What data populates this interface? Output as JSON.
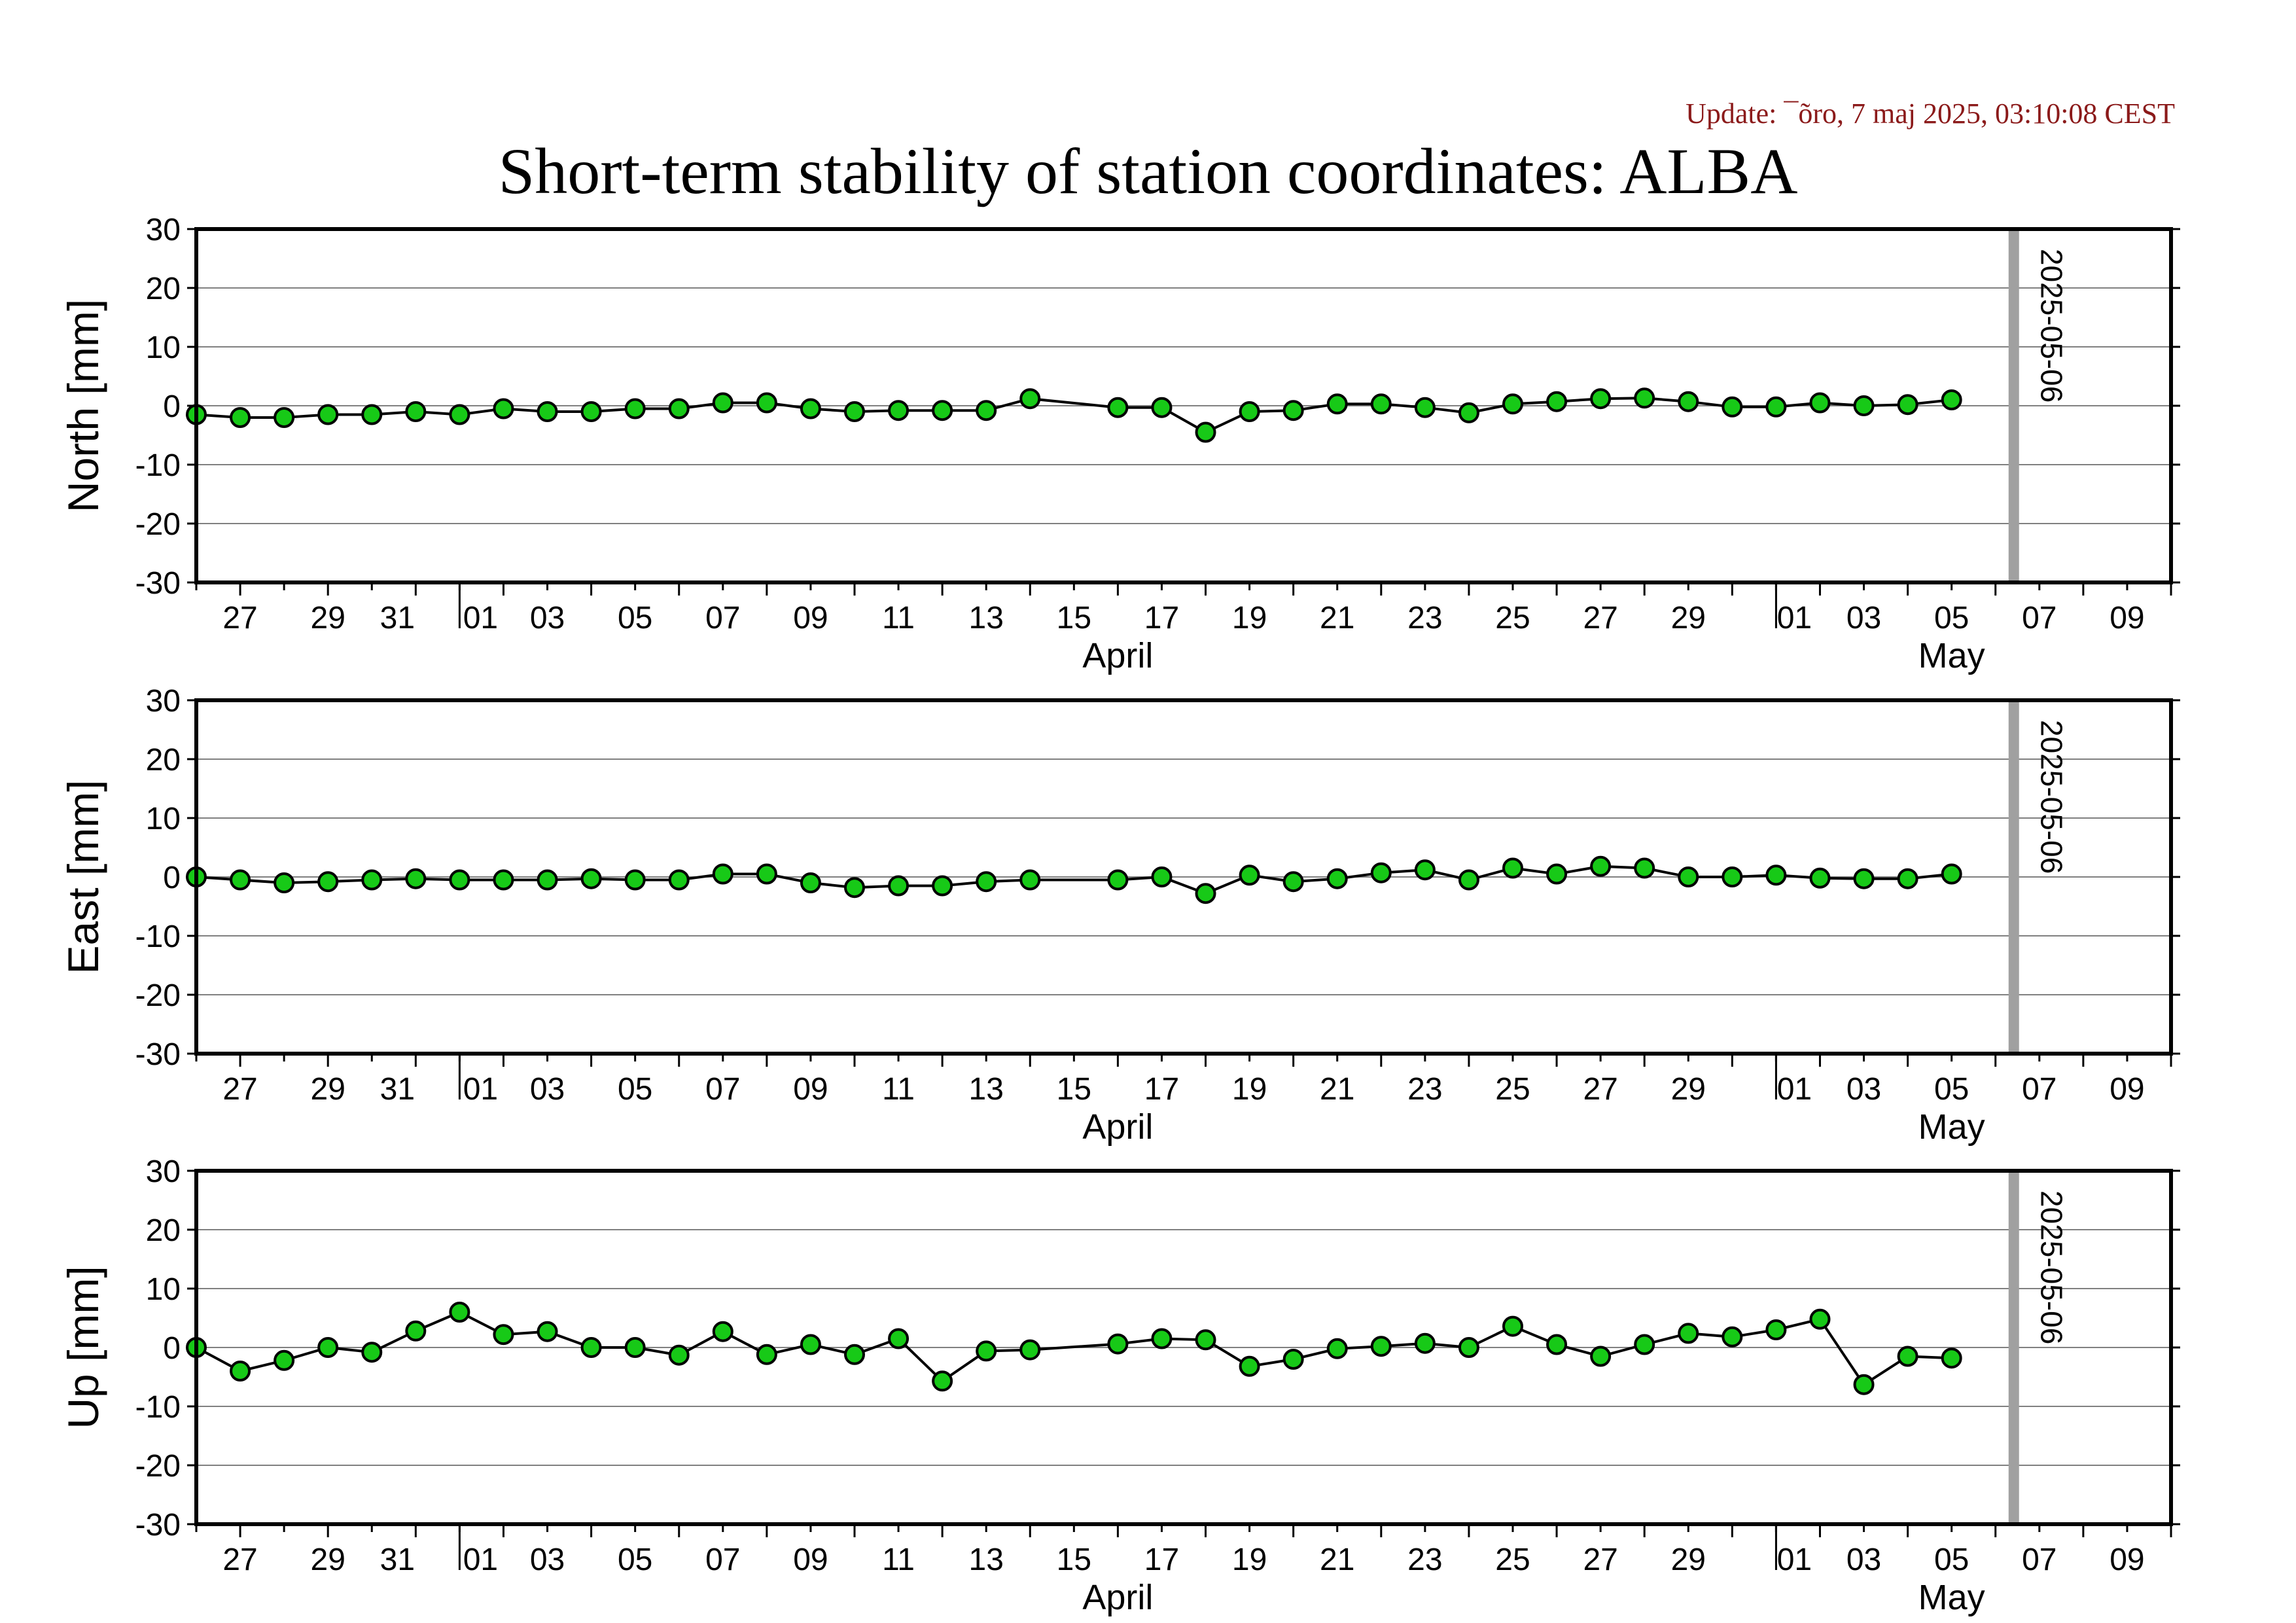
{
  "header": {
    "update": "Update: ¯õro, 7 maj 2025, 03:10:08 CEST",
    "title": "Short-term stability of station coordinates: ALBA"
  },
  "colors": {
    "marker_fill": "#17c917",
    "marker_stroke": "#000000",
    "line": "#000000",
    "grid": "#808080",
    "vline": "#a0a0a0",
    "update_text": "#8b1a1a"
  },
  "chart_data": [
    {
      "type": "line",
      "ylabel": "North [mm]",
      "ylim": [
        -30,
        30
      ],
      "yticks": [
        30,
        20,
        10,
        0,
        -10,
        -20,
        -30
      ],
      "grid": true,
      "x": [
        "2025-03-26",
        "2025-03-27",
        "2025-03-28",
        "2025-03-29",
        "2025-03-30",
        "2025-03-31",
        "2025-04-01",
        "2025-04-02",
        "2025-04-03",
        "2025-04-04",
        "2025-04-05",
        "2025-04-06",
        "2025-04-07",
        "2025-04-08",
        "2025-04-09",
        "2025-04-10",
        "2025-04-11",
        "2025-04-12",
        "2025-04-13",
        "2025-04-14",
        "2025-04-16",
        "2025-04-17",
        "2025-04-18",
        "2025-04-19",
        "2025-04-20",
        "2025-04-21",
        "2025-04-22",
        "2025-04-23",
        "2025-04-24",
        "2025-04-25",
        "2025-04-26",
        "2025-04-27",
        "2025-04-28",
        "2025-04-29",
        "2025-04-30",
        "2025-05-01",
        "2025-05-02",
        "2025-05-03",
        "2025-05-04",
        "2025-05-05"
      ],
      "values": [
        -1.5,
        -2,
        -2,
        -1.5,
        -1.5,
        -1,
        -1.5,
        -0.5,
        -1,
        -1,
        -0.5,
        -0.5,
        0.5,
        0.5,
        -0.5,
        -1,
        -0.8,
        -0.8,
        -0.8,
        1.2,
        -0.3,
        -0.3,
        -4.5,
        -1,
        -0.8,
        0.3,
        0.3,
        -0.3,
        -1.2,
        0.3,
        0.7,
        1.2,
        1.3,
        0.7,
        -0.2,
        -0.2,
        0.5,
        0,
        0.2,
        1
      ]
    },
    {
      "type": "line",
      "ylabel": "East [mm]",
      "ylim": [
        -30,
        30
      ],
      "yticks": [
        30,
        20,
        10,
        0,
        -10,
        -20,
        -30
      ],
      "grid": true,
      "x": [
        "2025-03-26",
        "2025-03-27",
        "2025-03-28",
        "2025-03-29",
        "2025-03-30",
        "2025-03-31",
        "2025-04-01",
        "2025-04-02",
        "2025-04-03",
        "2025-04-04",
        "2025-04-05",
        "2025-04-06",
        "2025-04-07",
        "2025-04-08",
        "2025-04-09",
        "2025-04-10",
        "2025-04-11",
        "2025-04-12",
        "2025-04-13",
        "2025-04-14",
        "2025-04-16",
        "2025-04-17",
        "2025-04-18",
        "2025-04-19",
        "2025-04-20",
        "2025-04-21",
        "2025-04-22",
        "2025-04-23",
        "2025-04-24",
        "2025-04-25",
        "2025-04-26",
        "2025-04-27",
        "2025-04-28",
        "2025-04-29",
        "2025-04-30",
        "2025-05-01",
        "2025-05-02",
        "2025-05-03",
        "2025-05-04",
        "2025-05-05"
      ],
      "values": [
        0,
        -0.5,
        -1,
        -0.8,
        -0.5,
        -0.3,
        -0.5,
        -0.5,
        -0.5,
        -0.3,
        -0.5,
        -0.5,
        0.5,
        0.5,
        -1,
        -1.8,
        -1.5,
        -1.5,
        -0.8,
        -0.5,
        -0.5,
        0,
        -2.8,
        0.3,
        -0.8,
        -0.3,
        0.7,
        1.2,
        -0.5,
        1.5,
        0.5,
        1.8,
        1.5,
        0,
        0,
        0.3,
        -0.2,
        -0.3,
        -0.3,
        0.5
      ]
    },
    {
      "type": "line",
      "ylabel": "Up [mm]",
      "ylim": [
        -30,
        30
      ],
      "yticks": [
        30,
        20,
        10,
        0,
        -10,
        -20,
        -30
      ],
      "grid": true,
      "x": [
        "2025-03-26",
        "2025-03-27",
        "2025-03-28",
        "2025-03-29",
        "2025-03-30",
        "2025-03-31",
        "2025-04-01",
        "2025-04-02",
        "2025-04-03",
        "2025-04-04",
        "2025-04-05",
        "2025-04-06",
        "2025-04-07",
        "2025-04-08",
        "2025-04-09",
        "2025-04-10",
        "2025-04-11",
        "2025-04-12",
        "2025-04-13",
        "2025-04-14",
        "2025-04-16",
        "2025-04-17",
        "2025-04-18",
        "2025-04-19",
        "2025-04-20",
        "2025-04-21",
        "2025-04-22",
        "2025-04-23",
        "2025-04-24",
        "2025-04-25",
        "2025-04-26",
        "2025-04-27",
        "2025-04-28",
        "2025-04-29",
        "2025-04-30",
        "2025-05-01",
        "2025-05-02",
        "2025-05-03",
        "2025-05-04",
        "2025-05-05"
      ],
      "values": [
        0,
        -4,
        -2.2,
        0,
        -0.8,
        2.8,
        6,
        2.2,
        2.7,
        0,
        0,
        -1.3,
        2.7,
        -1.2,
        0.5,
        -1.2,
        1.5,
        -5.7,
        -0.6,
        -0.4,
        0.6,
        1.5,
        1.3,
        -3.2,
        -2,
        -0.2,
        0.2,
        0.7,
        0,
        3.6,
        0.5,
        -1.5,
        0.5,
        2.4,
        1.8,
        3,
        4.8,
        -6.3,
        -1.5,
        -1.8
      ]
    }
  ],
  "xaxis": {
    "range": [
      "2025-03-26",
      "2025-05-10"
    ],
    "tick_labels": [
      {
        "date": "2025-03-27",
        "label": "27"
      },
      {
        "date": "2025-03-29",
        "label": "29"
      },
      {
        "date": "2025-03-31",
        "label": "31"
      },
      {
        "date": "2025-04-01",
        "label": "01"
      },
      {
        "date": "2025-04-03",
        "label": "03"
      },
      {
        "date": "2025-04-05",
        "label": "05"
      },
      {
        "date": "2025-04-07",
        "label": "07"
      },
      {
        "date": "2025-04-09",
        "label": "09"
      },
      {
        "date": "2025-04-11",
        "label": "11"
      },
      {
        "date": "2025-04-13",
        "label": "13"
      },
      {
        "date": "2025-04-15",
        "label": "15"
      },
      {
        "date": "2025-04-17",
        "label": "17"
      },
      {
        "date": "2025-04-19",
        "label": "19"
      },
      {
        "date": "2025-04-21",
        "label": "21"
      },
      {
        "date": "2025-04-23",
        "label": "23"
      },
      {
        "date": "2025-04-25",
        "label": "25"
      },
      {
        "date": "2025-04-27",
        "label": "27"
      },
      {
        "date": "2025-04-29",
        "label": "29"
      },
      {
        "date": "2025-05-01",
        "label": "01"
      },
      {
        "date": "2025-05-03",
        "label": "03"
      },
      {
        "date": "2025-05-05",
        "label": "05"
      },
      {
        "date": "2025-05-07",
        "label": "07"
      },
      {
        "date": "2025-05-09",
        "label": "09"
      }
    ],
    "month_boundaries": [
      "2025-04-01",
      "2025-05-01"
    ],
    "month_labels": [
      {
        "label": "April",
        "center_date": "2025-04-16"
      },
      {
        "label": "May",
        "center_date": "2025-05-05"
      }
    ]
  },
  "marker": {
    "date": "2025-05-06",
    "label": "2025-05-06"
  }
}
